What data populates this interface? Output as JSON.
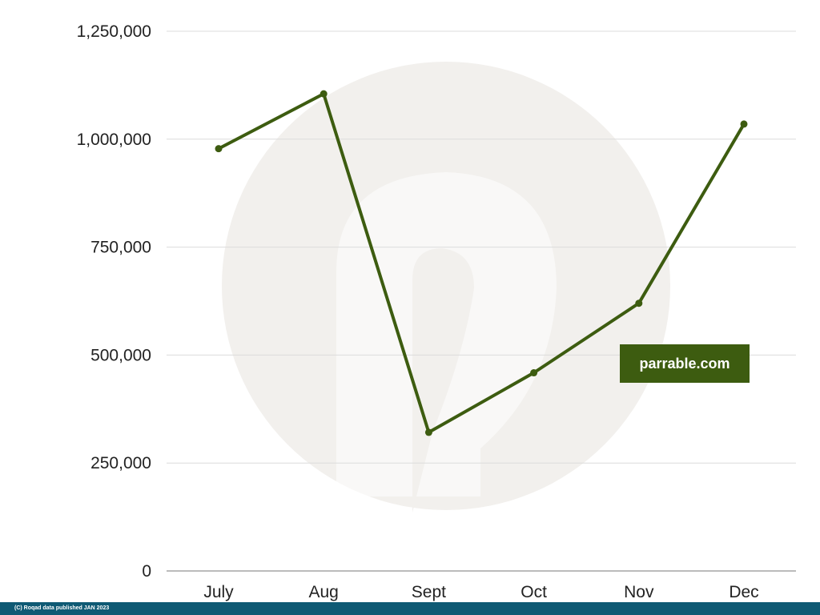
{
  "chart_data": {
    "type": "line",
    "categories": [
      "July",
      "Aug",
      "Sept",
      "Oct",
      "Nov",
      "Dec"
    ],
    "series": [
      {
        "values": [
          978000,
          1105000,
          321000,
          459000,
          620000,
          1035000
        ]
      }
    ],
    "y_ticks": [
      "0",
      "250,000",
      "500,000",
      "750,000",
      "1,000,000",
      "1,250,000"
    ],
    "ylim": [
      0,
      1250000
    ],
    "grid": true,
    "line_color": "#3d5c10"
  },
  "badge": {
    "text": "parrable.com"
  },
  "footer": {
    "text": "(C) Roqad data published JAN 2023"
  },
  "watermark": {
    "icon": "parrable-logo-icon",
    "color": "#f1efec"
  }
}
